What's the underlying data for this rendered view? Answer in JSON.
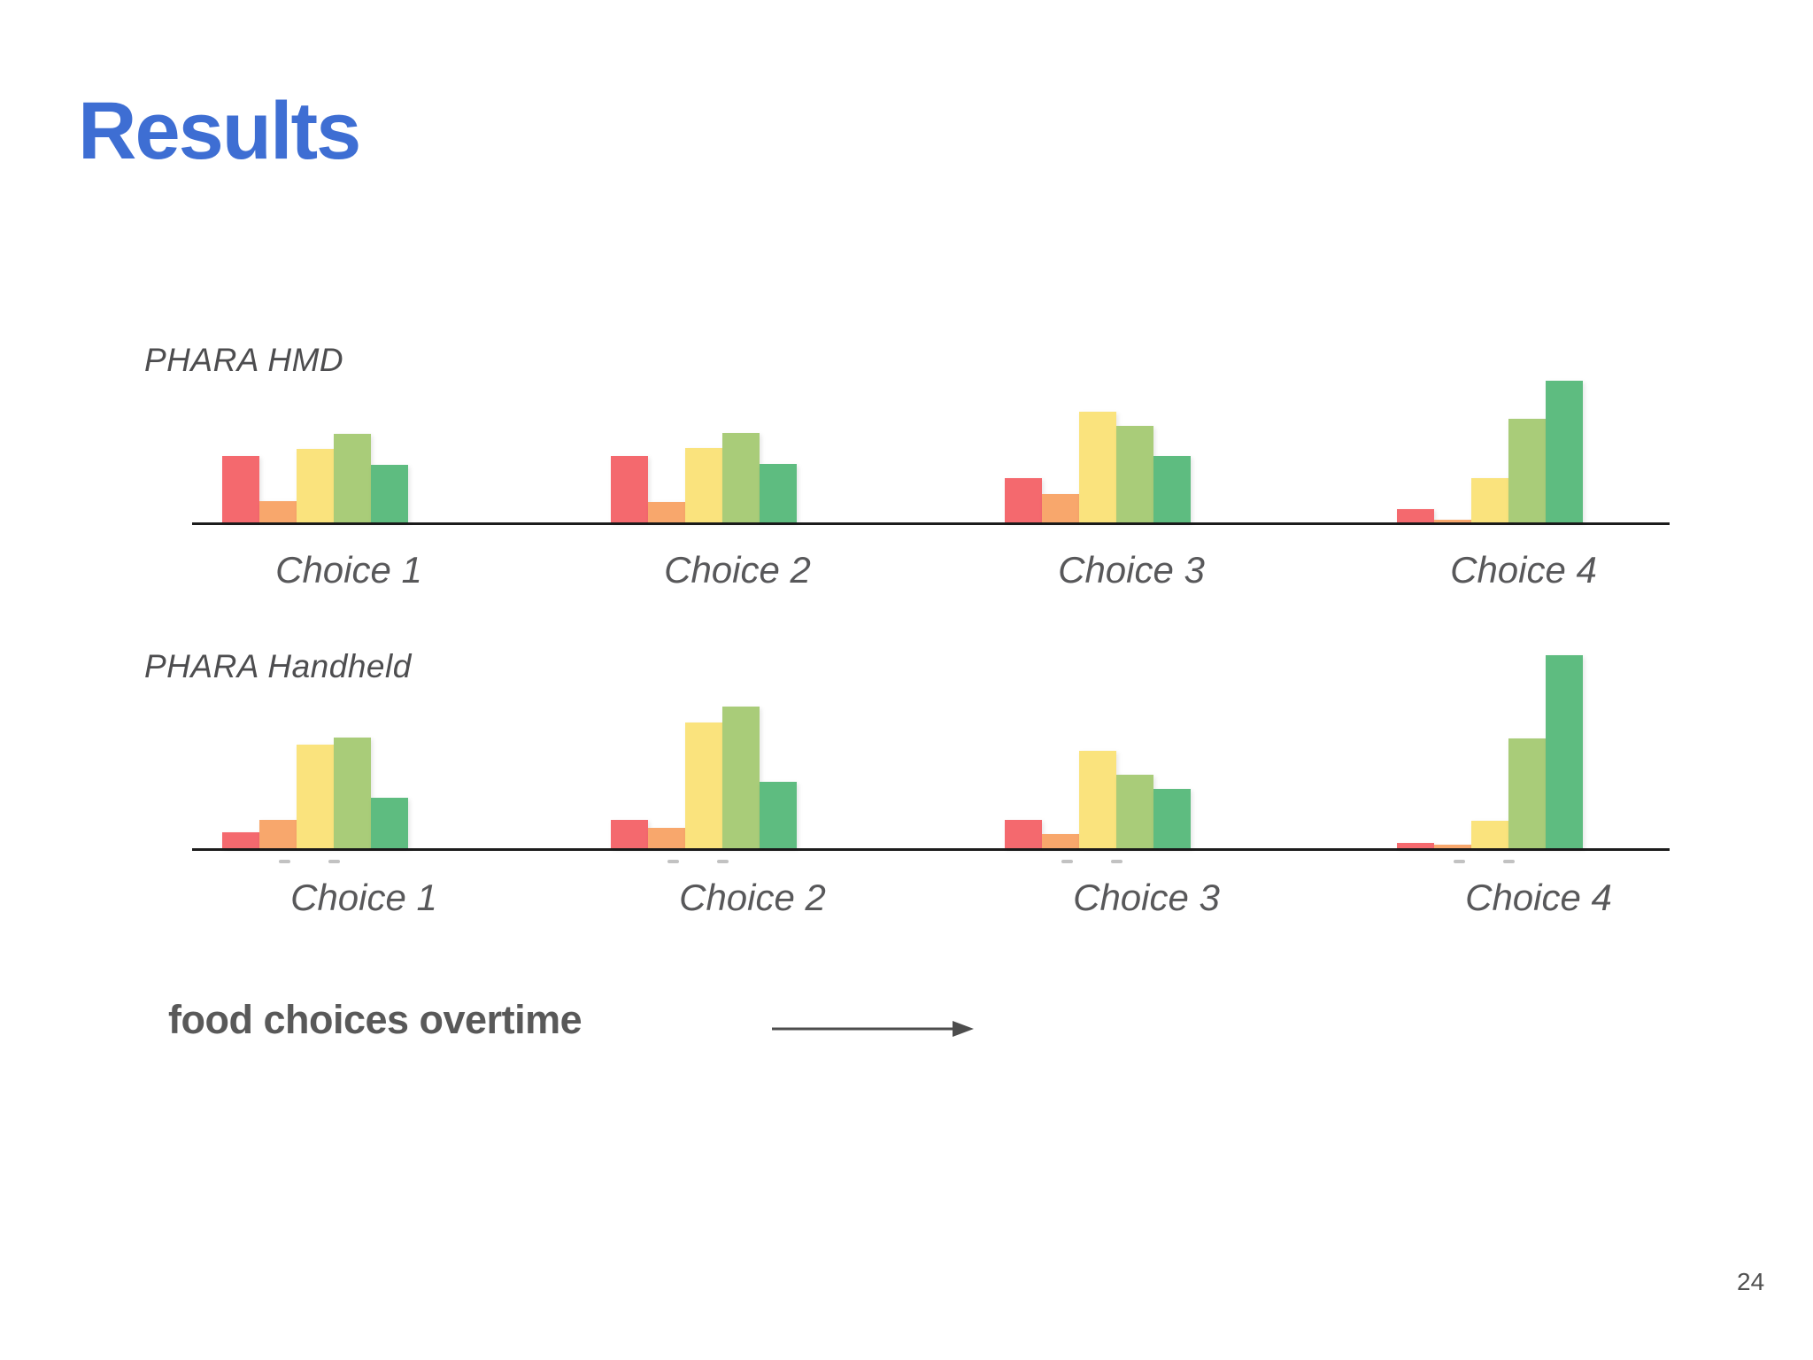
{
  "title": "Results",
  "title_color": "#3E6ED3",
  "caption": {
    "text": "food choices overtime"
  },
  "page_number": "24",
  "icons": {
    "arrow_right": "right-arrow"
  },
  "colors": {
    "red": "#F4696E",
    "orange": "#F8A76C",
    "yellow": "#FAE37D",
    "light_green": "#A9CC79",
    "green": "#5EBC80",
    "axis": "#1c1c1c",
    "label_gray": "#58585a"
  },
  "chart_data": [
    {
      "type": "bar",
      "panel_label": "PHARA HMD",
      "categories": [
        "Choice 1",
        "Choice 2",
        "Choice 3",
        "Choice 4"
      ],
      "series": [
        {
          "name": "red",
          "color": "#F4696E",
          "values": [
            75,
            75,
            50,
            15
          ]
        },
        {
          "name": "orange",
          "color": "#F8A76C",
          "values": [
            24,
            23,
            32,
            3
          ]
        },
        {
          "name": "yellow",
          "color": "#FAE37D",
          "values": [
            83,
            84,
            125,
            50
          ]
        },
        {
          "name": "light-green",
          "color": "#A9CC79",
          "values": [
            100,
            101,
            109,
            117
          ]
        },
        {
          "name": "green",
          "color": "#5EBC80",
          "values": [
            65,
            66,
            75,
            160
          ]
        }
      ],
      "xlabel": "",
      "ylabel": "",
      "legend": false,
      "units": "relative bar height (no y-axis shown)"
    },
    {
      "type": "bar",
      "panel_label": "PHARA Handheld",
      "categories": [
        "Choice 1",
        "Choice 2",
        "Choice 3",
        "Choice 4"
      ],
      "series": [
        {
          "name": "red",
          "color": "#F4696E",
          "values": [
            18,
            32,
            32,
            6
          ]
        },
        {
          "name": "orange",
          "color": "#F8A76C",
          "values": [
            32,
            23,
            16,
            4
          ]
        },
        {
          "name": "yellow",
          "color": "#FAE37D",
          "values": [
            117,
            142,
            110,
            31
          ]
        },
        {
          "name": "light-green",
          "color": "#A9CC79",
          "values": [
            125,
            160,
            83,
            124
          ]
        },
        {
          "name": "green",
          "color": "#5EBC80",
          "values": [
            57,
            75,
            67,
            218
          ]
        }
      ],
      "xlabel": "",
      "ylabel": "",
      "legend": false,
      "units": "relative bar height (no y-axis shown)"
    }
  ]
}
